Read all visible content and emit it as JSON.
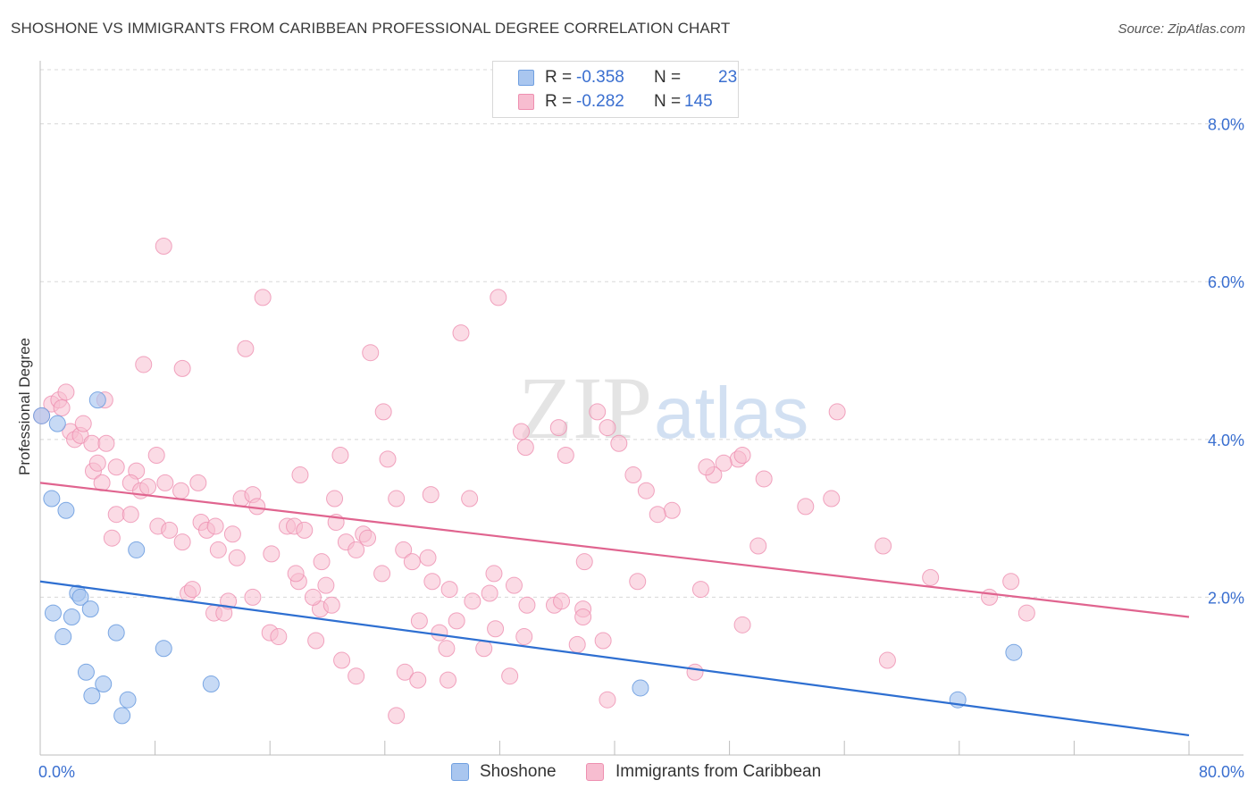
{
  "title": "SHOSHONE VS IMMIGRANTS FROM CARIBBEAN PROFESSIONAL DEGREE CORRELATION CHART",
  "source": "Source: ZipAtlas.com",
  "watermark": {
    "zip": "ZIP",
    "atlas": "atlas"
  },
  "legend": {
    "r_label": "R = ",
    "n_label": "N = ",
    "rows": [
      {
        "r": "-0.358",
        "n": "23"
      },
      {
        "r": "-0.282",
        "n": "145"
      }
    ]
  },
  "colors": {
    "shoshone_fill": "#a9c6ef",
    "shoshone_stroke": "#6f9fe0",
    "shoshone_line": "#2e6fd1",
    "caribbean_fill": "#f7bdd0",
    "caribbean_stroke": "#ee8fb0",
    "caribbean_line": "#e0648f",
    "tick_label": "#3a6fd0",
    "grid": "#d8d8d8"
  },
  "chart_data": {
    "type": "scatter",
    "title": "SHOSHONE VS IMMIGRANTS FROM CARIBBEAN PROFESSIONAL DEGREE CORRELATION CHART",
    "xlabel": "",
    "ylabel": "Professional Degree",
    "xlim": [
      0,
      80
    ],
    "ylim": [
      0,
      8.8
    ],
    "x_tick_labels": [
      "0.0%",
      "80.0%"
    ],
    "y_ticks": [
      2,
      4,
      6,
      8
    ],
    "y_tick_labels": [
      "2.0%",
      "4.0%",
      "6.0%",
      "8.0%"
    ],
    "grid": true,
    "legend_position": "top-center",
    "series": [
      {
        "name": "Shoshone",
        "R": -0.358,
        "N": 23,
        "trend": {
          "x": [
            0,
            80
          ],
          "y": [
            2.2,
            0.25
          ]
        },
        "points": [
          [
            0.1,
            4.3
          ],
          [
            1.2,
            4.2
          ],
          [
            4.0,
            4.5
          ],
          [
            0.8,
            3.25
          ],
          [
            1.8,
            3.1
          ],
          [
            6.7,
            2.6
          ],
          [
            2.6,
            2.05
          ],
          [
            2.8,
            2.0
          ],
          [
            0.9,
            1.8
          ],
          [
            2.2,
            1.75
          ],
          [
            3.5,
            1.85
          ],
          [
            1.6,
            1.5
          ],
          [
            5.3,
            1.55
          ],
          [
            8.6,
            1.35
          ],
          [
            3.2,
            1.05
          ],
          [
            4.4,
            0.9
          ],
          [
            3.6,
            0.75
          ],
          [
            6.1,
            0.7
          ],
          [
            11.9,
            0.9
          ],
          [
            5.7,
            0.5
          ],
          [
            41.8,
            0.85
          ],
          [
            67.8,
            1.3
          ],
          [
            63.9,
            0.7
          ]
        ]
      },
      {
        "name": "Immigrants from Caribbean",
        "R": -0.282,
        "N": 145,
        "trend": {
          "x": [
            0,
            80
          ],
          "y": [
            3.45,
            1.75
          ]
        },
        "points": [
          [
            0.1,
            4.3
          ],
          [
            0.8,
            4.45
          ],
          [
            1.3,
            4.5
          ],
          [
            1.5,
            4.4
          ],
          [
            1.8,
            4.6
          ],
          [
            2.1,
            4.1
          ],
          [
            2.4,
            4.0
          ],
          [
            2.8,
            4.05
          ],
          [
            3.0,
            4.2
          ],
          [
            3.6,
            3.95
          ],
          [
            4.5,
            4.5
          ],
          [
            4.6,
            3.95
          ],
          [
            3.7,
            3.6
          ],
          [
            4.0,
            3.7
          ],
          [
            5.3,
            3.65
          ],
          [
            6.7,
            3.6
          ],
          [
            4.3,
            3.45
          ],
          [
            6.3,
            3.45
          ],
          [
            7.0,
            3.35
          ],
          [
            7.5,
            3.4
          ],
          [
            8.1,
            3.8
          ],
          [
            8.7,
            3.45
          ],
          [
            9.8,
            3.35
          ],
          [
            11.0,
            3.45
          ],
          [
            5.3,
            3.05
          ],
          [
            6.3,
            3.05
          ],
          [
            5.0,
            2.75
          ],
          [
            8.2,
            2.9
          ],
          [
            9.0,
            2.85
          ],
          [
            9.9,
            2.7
          ],
          [
            11.2,
            2.95
          ],
          [
            11.6,
            2.85
          ],
          [
            12.2,
            2.9
          ],
          [
            12.4,
            2.6
          ],
          [
            13.4,
            2.8
          ],
          [
            13.7,
            2.5
          ],
          [
            14.0,
            3.25
          ],
          [
            14.8,
            3.3
          ],
          [
            15.1,
            3.15
          ],
          [
            16.1,
            2.55
          ],
          [
            17.2,
            2.9
          ],
          [
            17.7,
            2.9
          ],
          [
            18.4,
            2.85
          ],
          [
            18.0,
            2.2
          ],
          [
            19.6,
            2.45
          ],
          [
            19.9,
            2.15
          ],
          [
            20.6,
            2.95
          ],
          [
            21.3,
            2.7
          ],
          [
            22.0,
            2.6
          ],
          [
            22.5,
            2.8
          ],
          [
            22.8,
            2.75
          ],
          [
            23.8,
            2.3
          ],
          [
            25.3,
            2.6
          ],
          [
            25.9,
            2.45
          ],
          [
            27.0,
            2.5
          ],
          [
            27.3,
            2.2
          ],
          [
            28.5,
            2.1
          ],
          [
            30.1,
            1.95
          ],
          [
            31.3,
            2.05
          ],
          [
            31.6,
            2.3
          ],
          [
            33.0,
            2.15
          ],
          [
            33.9,
            1.9
          ],
          [
            35.8,
            1.9
          ],
          [
            37.8,
            1.85
          ],
          [
            36.3,
            1.95
          ],
          [
            10.3,
            2.05
          ],
          [
            10.6,
            2.1
          ],
          [
            12.1,
            1.8
          ],
          [
            12.8,
            1.8
          ],
          [
            13.1,
            1.95
          ],
          [
            14.8,
            2.0
          ],
          [
            17.8,
            2.3
          ],
          [
            19.5,
            1.85
          ],
          [
            19.0,
            2.0
          ],
          [
            20.3,
            1.9
          ],
          [
            26.4,
            1.7
          ],
          [
            27.8,
            1.55
          ],
          [
            28.3,
            1.35
          ],
          [
            29.0,
            1.7
          ],
          [
            30.9,
            1.35
          ],
          [
            31.7,
            1.6
          ],
          [
            33.7,
            1.5
          ],
          [
            37.4,
            1.4
          ],
          [
            39.2,
            1.45
          ],
          [
            37.8,
            1.75
          ],
          [
            16.0,
            1.55
          ],
          [
            16.6,
            1.5
          ],
          [
            19.2,
            1.45
          ],
          [
            21.0,
            1.2
          ],
          [
            22.0,
            1.0
          ],
          [
            25.4,
            1.05
          ],
          [
            26.3,
            0.95
          ],
          [
            28.4,
            0.95
          ],
          [
            32.7,
            1.0
          ],
          [
            39.5,
            0.7
          ],
          [
            24.8,
            0.5
          ],
          [
            45.6,
            1.05
          ],
          [
            48.9,
            1.65
          ],
          [
            59.0,
            1.2
          ],
          [
            66.1,
            2.0
          ],
          [
            67.6,
            2.2
          ],
          [
            68.7,
            1.8
          ],
          [
            62.0,
            2.25
          ],
          [
            58.7,
            2.65
          ],
          [
            55.1,
            3.25
          ],
          [
            53.3,
            3.15
          ],
          [
            50.0,
            2.65
          ],
          [
            46.0,
            2.1
          ],
          [
            41.6,
            2.2
          ],
          [
            37.9,
            2.45
          ],
          [
            44.0,
            3.1
          ],
          [
            43.0,
            3.05
          ],
          [
            42.2,
            3.35
          ],
          [
            41.3,
            3.55
          ],
          [
            48.6,
            3.75
          ],
          [
            48.9,
            3.8
          ],
          [
            47.6,
            3.7
          ],
          [
            46.9,
            3.55
          ],
          [
            50.4,
            3.5
          ],
          [
            46.4,
            3.65
          ],
          [
            39.5,
            4.15
          ],
          [
            40.3,
            3.95
          ],
          [
            38.8,
            4.35
          ],
          [
            36.1,
            4.15
          ],
          [
            36.6,
            3.8
          ],
          [
            33.5,
            4.1
          ],
          [
            33.8,
            3.9
          ],
          [
            31.9,
            5.8
          ],
          [
            29.3,
            5.35
          ],
          [
            23.0,
            5.1
          ],
          [
            23.9,
            4.35
          ],
          [
            24.2,
            3.75
          ],
          [
            20.9,
            3.8
          ],
          [
            18.1,
            3.55
          ],
          [
            20.5,
            3.25
          ],
          [
            24.8,
            3.25
          ],
          [
            27.2,
            3.3
          ],
          [
            29.9,
            3.25
          ],
          [
            8.6,
            6.45
          ],
          [
            15.5,
            5.8
          ],
          [
            14.3,
            5.15
          ],
          [
            7.2,
            4.95
          ],
          [
            9.9,
            4.9
          ],
          [
            55.5,
            4.35
          ]
        ]
      }
    ]
  },
  "bottom_legend": [
    "Shoshone",
    "Immigrants from Caribbean"
  ]
}
